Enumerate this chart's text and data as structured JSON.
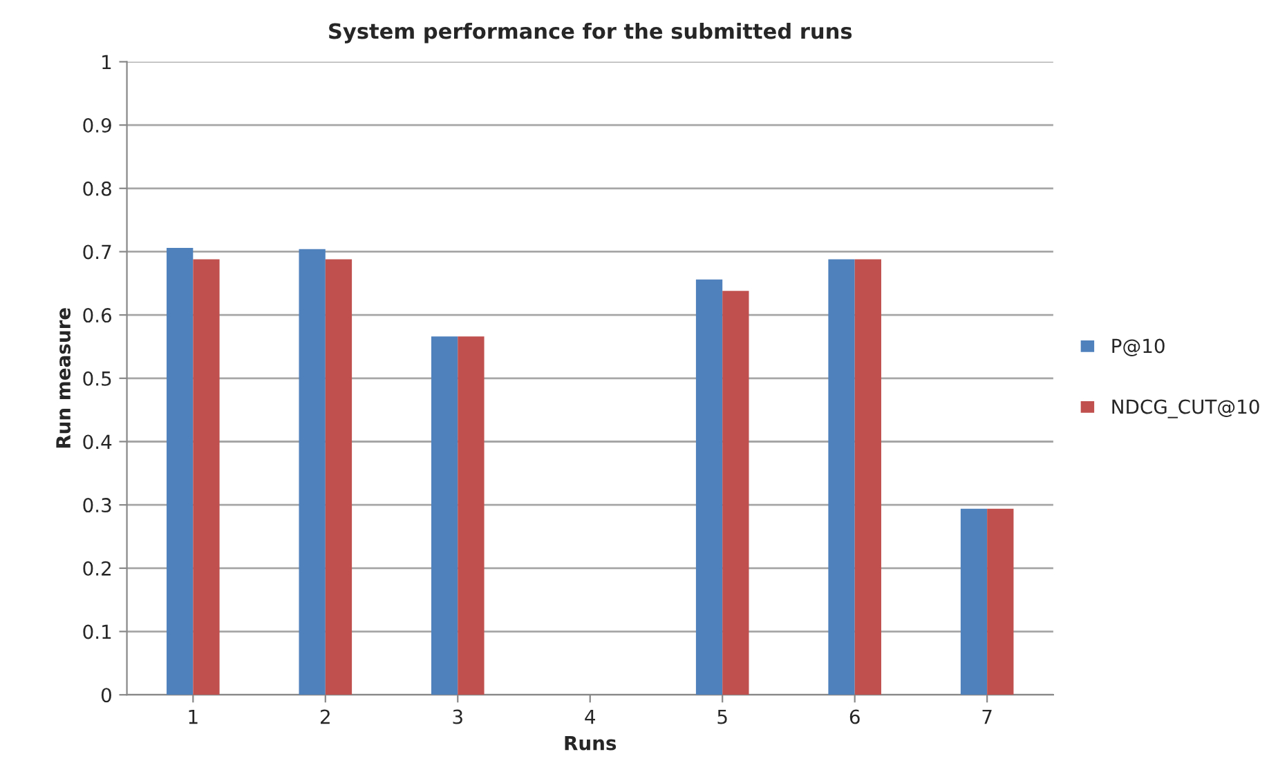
{
  "chart_data": {
    "type": "bar",
    "title": "System performance for the submitted runs",
    "xlabel": "Runs",
    "ylabel": "Run measure",
    "categories": [
      "1",
      "2",
      "3",
      "4",
      "5",
      "6",
      "7"
    ],
    "series": [
      {
        "name": "P@10",
        "color": "#4f81bd",
        "values": [
          0.706,
          0.704,
          0.566,
          0,
          0.656,
          0.688,
          0.294
        ]
      },
      {
        "name": "NDCG_CUT@10",
        "color": "#c0504d",
        "values": [
          0.688,
          0.688,
          0.566,
          0,
          0.638,
          0.688,
          0.294
        ]
      }
    ],
    "ylim": [
      0,
      1
    ],
    "yticks": [
      0,
      {
        "value": 0.1,
        "label": "0.1"
      },
      {
        "value": 0.2,
        "label": "0.2"
      },
      {
        "value": 0.3,
        "label": "0.3"
      },
      {
        "value": 0.4,
        "label": "0.4"
      },
      {
        "value": 0.5,
        "label": "0.5"
      },
      {
        "value": 0.6,
        "label": "0.6"
      },
      {
        "value": 0.7,
        "label": "0.7"
      },
      {
        "value": 0.8,
        "label": "0.8"
      },
      {
        "value": 0.9,
        "label": "0.9"
      },
      1
    ],
    "grid": "y",
    "legend": "right"
  }
}
